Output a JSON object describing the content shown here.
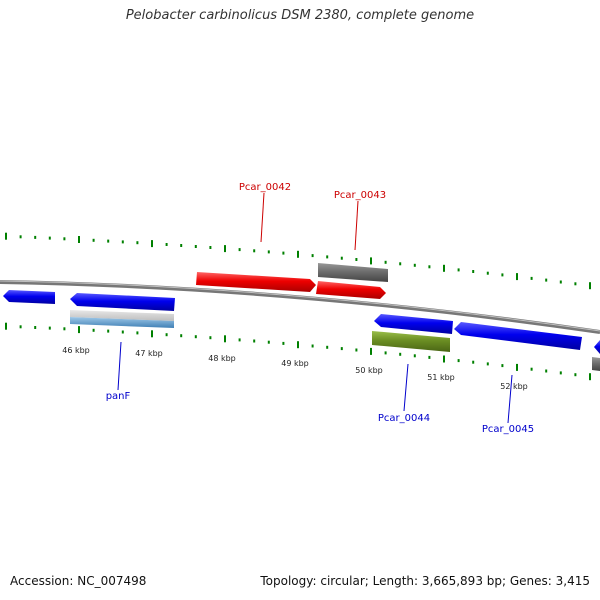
{
  "title": "Pelobacter carbinolicus DSM 2380, complete genome",
  "footer": {
    "accession": "Accession: NC_007498",
    "genome_info": "Topology: circular; Length: 3,665,893 bp; Genes: 3,415"
  },
  "colors": {
    "forward_cds": "#ee0000",
    "reverse_cds": "#0000ee",
    "grey_feature": "#666666",
    "olive_feature": "#6b8e23",
    "tick": "#008000",
    "backbone": "#777777"
  },
  "scale_labels": [
    "46 kbp",
    "47 kbp",
    "48 kbp",
    "49 kbp",
    "50 kbp",
    "51 kbp",
    "52 kbp"
  ],
  "gene_labels": {
    "pcar_0042": "Pcar_0042",
    "pcar_0043": "Pcar_0043",
    "panf": "panF",
    "pcar_0044": "Pcar_0044",
    "pcar_0045": "Pcar_0045"
  }
}
